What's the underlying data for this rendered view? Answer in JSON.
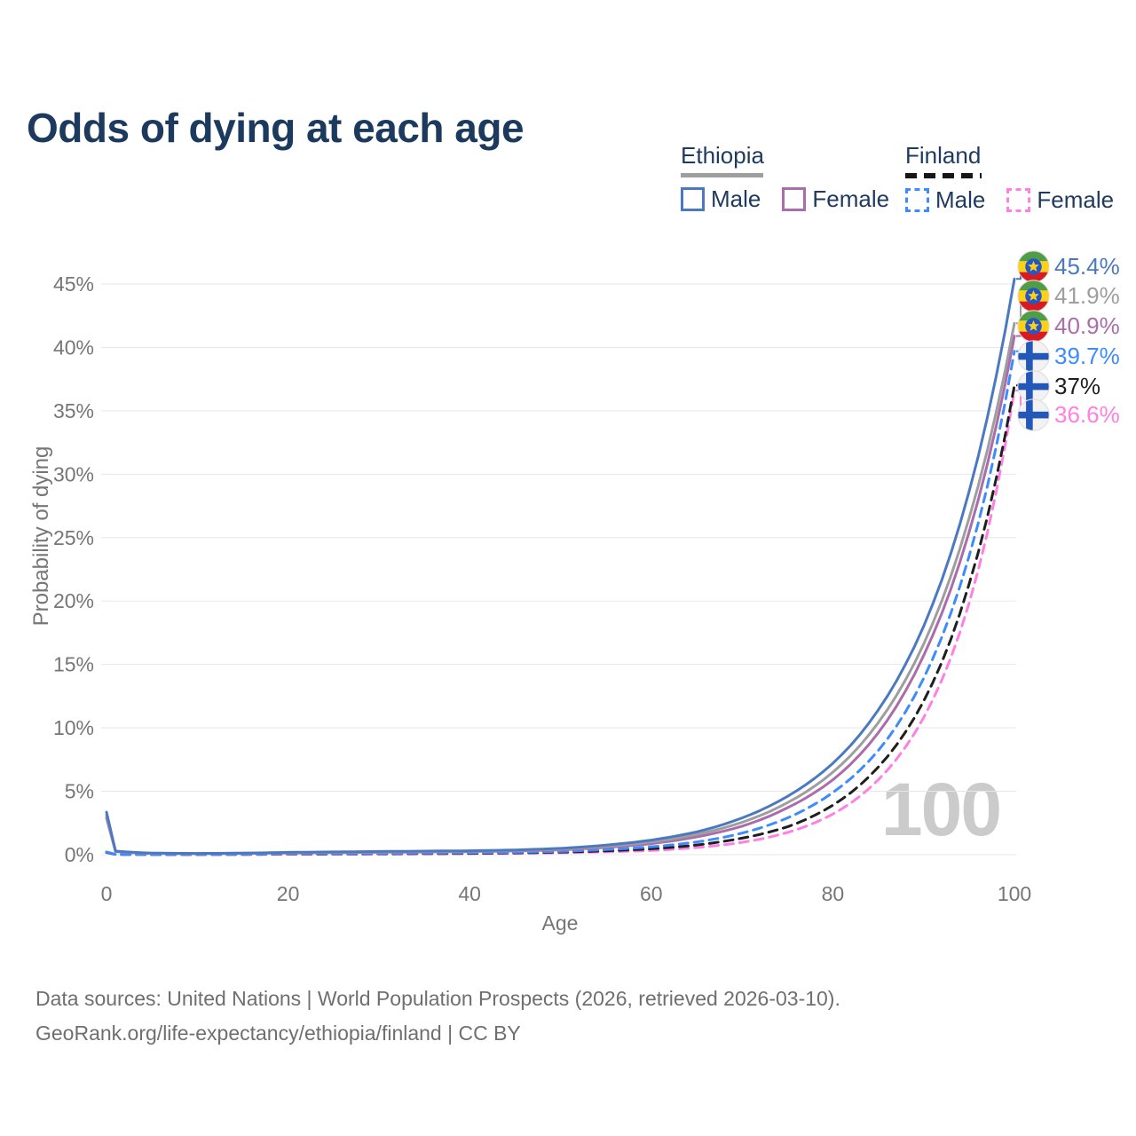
{
  "title": "Odds of dying at each age",
  "watermark": "100",
  "legend": {
    "groups": [
      {
        "country": "Ethiopia",
        "line_style": "solid",
        "underline_color": "#9e9e9e",
        "items": [
          {
            "label": "Male",
            "color": "#4a79c2"
          },
          {
            "label": "Female",
            "color": "#ab6cab"
          }
        ]
      },
      {
        "country": "Finland",
        "line_style": "dashed",
        "underline_color": "#161616",
        "items": [
          {
            "label": "Male",
            "color": "#3c8cff"
          },
          {
            "label": "Female",
            "color": "#ff7fe3"
          }
        ]
      }
    ]
  },
  "chart_data": {
    "type": "line",
    "title": "Odds of dying at each age",
    "xlabel": "Age",
    "ylabel": "Probability of dying",
    "xlim": [
      0,
      100
    ],
    "ylim": [
      0,
      45
    ],
    "grid": "horizontal",
    "legend_position": "top-right",
    "x_ticks": [
      {
        "value": 0,
        "label": "0"
      },
      {
        "value": 20,
        "label": "20"
      },
      {
        "value": 40,
        "label": "40"
      },
      {
        "value": 60,
        "label": "60"
      },
      {
        "value": 80,
        "label": "80"
      },
      {
        "value": 100,
        "label": "100"
      }
    ],
    "y_ticks": [
      {
        "value": 0,
        "label": "0%"
      },
      {
        "value": 5,
        "label": "5%"
      },
      {
        "value": 10,
        "label": "10%"
      },
      {
        "value": 15,
        "label": "15%"
      },
      {
        "value": 20,
        "label": "20%"
      },
      {
        "value": 25,
        "label": "25%"
      },
      {
        "value": 30,
        "label": "30%"
      },
      {
        "value": 35,
        "label": "35%"
      },
      {
        "value": 40,
        "label": "40%"
      },
      {
        "value": 45,
        "label": "45%"
      }
    ],
    "series": [
      {
        "name": "Ethiopia Male",
        "country": "Ethiopia",
        "group": "Male",
        "color": "#4a79c2",
        "dash": "solid",
        "end_label": "45.4%",
        "points": [
          [
            0,
            3.35
          ],
          [
            1,
            0.28
          ],
          [
            5,
            0.12
          ],
          [
            10,
            0.1
          ],
          [
            15,
            0.12
          ],
          [
            20,
            0.18
          ],
          [
            25,
            0.22
          ],
          [
            30,
            0.25
          ],
          [
            35,
            0.28
          ],
          [
            40,
            0.31
          ],
          [
            45,
            0.37
          ],
          [
            50,
            0.5
          ],
          [
            55,
            0.75
          ],
          [
            60,
            1.15
          ],
          [
            65,
            1.8
          ],
          [
            70,
            2.9
          ],
          [
            75,
            4.6
          ],
          [
            80,
            7.2
          ],
          [
            85,
            11.4
          ],
          [
            90,
            18.0
          ],
          [
            95,
            28.6
          ],
          [
            100,
            45.4
          ]
        ]
      },
      {
        "name": "Ethiopia",
        "country": "Ethiopia",
        "group": "All",
        "color": "#9e9e9e",
        "dash": "solid",
        "end_label": "41.9%",
        "points": [
          [
            0,
            3.1
          ],
          [
            1,
            0.26
          ],
          [
            5,
            0.11
          ],
          [
            10,
            0.09
          ],
          [
            15,
            0.11
          ],
          [
            20,
            0.16
          ],
          [
            25,
            0.19
          ],
          [
            30,
            0.22
          ],
          [
            35,
            0.25
          ],
          [
            40,
            0.28
          ],
          [
            45,
            0.33
          ],
          [
            50,
            0.44
          ],
          [
            55,
            0.66
          ],
          [
            60,
            1.0
          ],
          [
            65,
            1.6
          ],
          [
            70,
            2.55
          ],
          [
            75,
            4.1
          ],
          [
            80,
            6.5
          ],
          [
            85,
            10.4
          ],
          [
            90,
            16.6
          ],
          [
            95,
            26.5
          ],
          [
            100,
            41.9
          ]
        ]
      },
      {
        "name": "Ethiopia Female",
        "country": "Ethiopia",
        "group": "Female",
        "color": "#ab6cab",
        "dash": "solid",
        "end_label": "40.9%",
        "points": [
          [
            0,
            2.9
          ],
          [
            1,
            0.24
          ],
          [
            5,
            0.1
          ],
          [
            10,
            0.08
          ],
          [
            15,
            0.1
          ],
          [
            20,
            0.13
          ],
          [
            25,
            0.16
          ],
          [
            30,
            0.18
          ],
          [
            35,
            0.21
          ],
          [
            40,
            0.24
          ],
          [
            45,
            0.29
          ],
          [
            50,
            0.38
          ],
          [
            55,
            0.57
          ],
          [
            60,
            0.87
          ],
          [
            65,
            1.4
          ],
          [
            70,
            2.25
          ],
          [
            75,
            3.7
          ],
          [
            80,
            5.9
          ],
          [
            85,
            9.6
          ],
          [
            90,
            15.7
          ],
          [
            95,
            25.4
          ],
          [
            100,
            40.9
          ]
        ]
      },
      {
        "name": "Finland Male",
        "country": "Finland",
        "group": "Male",
        "color": "#3c8cff",
        "dash": "dashed",
        "end_label": "39.7%",
        "points": [
          [
            0,
            0.22
          ],
          [
            1,
            0.02
          ],
          [
            5,
            0.01
          ],
          [
            10,
            0.012
          ],
          [
            15,
            0.03
          ],
          [
            20,
            0.07
          ],
          [
            25,
            0.09
          ],
          [
            30,
            0.1
          ],
          [
            35,
            0.12
          ],
          [
            40,
            0.14
          ],
          [
            45,
            0.18
          ],
          [
            50,
            0.26
          ],
          [
            55,
            0.4
          ],
          [
            60,
            0.62
          ],
          [
            65,
            1.0
          ],
          [
            70,
            1.7
          ],
          [
            75,
            2.9
          ],
          [
            80,
            4.9
          ],
          [
            85,
            8.2
          ],
          [
            90,
            13.9
          ],
          [
            95,
            23.5
          ],
          [
            100,
            39.7
          ]
        ]
      },
      {
        "name": "Finland",
        "country": "Finland",
        "group": "All",
        "color": "#1f1f1f",
        "dash": "dashed",
        "end_label": "37%",
        "points": [
          [
            0,
            0.19
          ],
          [
            1,
            0.017
          ],
          [
            5,
            0.009
          ],
          [
            10,
            0.01
          ],
          [
            15,
            0.022
          ],
          [
            20,
            0.05
          ],
          [
            25,
            0.06
          ],
          [
            30,
            0.07
          ],
          [
            35,
            0.085
          ],
          [
            40,
            0.1
          ],
          [
            45,
            0.14
          ],
          [
            50,
            0.2
          ],
          [
            55,
            0.3
          ],
          [
            60,
            0.46
          ],
          [
            65,
            0.76
          ],
          [
            70,
            1.3
          ],
          [
            75,
            2.2
          ],
          [
            80,
            3.9
          ],
          [
            85,
            6.9
          ],
          [
            90,
            12.1
          ],
          [
            95,
            21.3
          ],
          [
            100,
            37.0
          ]
        ]
      },
      {
        "name": "Finland Female",
        "country": "Finland",
        "group": "Female",
        "color": "#ff7fe3",
        "dash": "dashed",
        "end_label": "36.6%",
        "points": [
          [
            0,
            0.17
          ],
          [
            1,
            0.015
          ],
          [
            5,
            0.008
          ],
          [
            10,
            0.008
          ],
          [
            15,
            0.015
          ],
          [
            20,
            0.03
          ],
          [
            25,
            0.04
          ],
          [
            30,
            0.05
          ],
          [
            35,
            0.06
          ],
          [
            40,
            0.075
          ],
          [
            45,
            0.1
          ],
          [
            50,
            0.15
          ],
          [
            55,
            0.22
          ],
          [
            60,
            0.33
          ],
          [
            65,
            0.56
          ],
          [
            70,
            0.97
          ],
          [
            75,
            1.75
          ],
          [
            80,
            3.2
          ],
          [
            85,
            5.9
          ],
          [
            90,
            10.8
          ],
          [
            95,
            19.8
          ],
          [
            100,
            36.6
          ]
        ]
      }
    ]
  },
  "source": {
    "line1": "Data sources: United Nations | World Population Prospects (2026, retrieved 2026-03-10).",
    "line2": "GeoRank.org/life-expectancy/ethiopia/finland | CC BY"
  }
}
